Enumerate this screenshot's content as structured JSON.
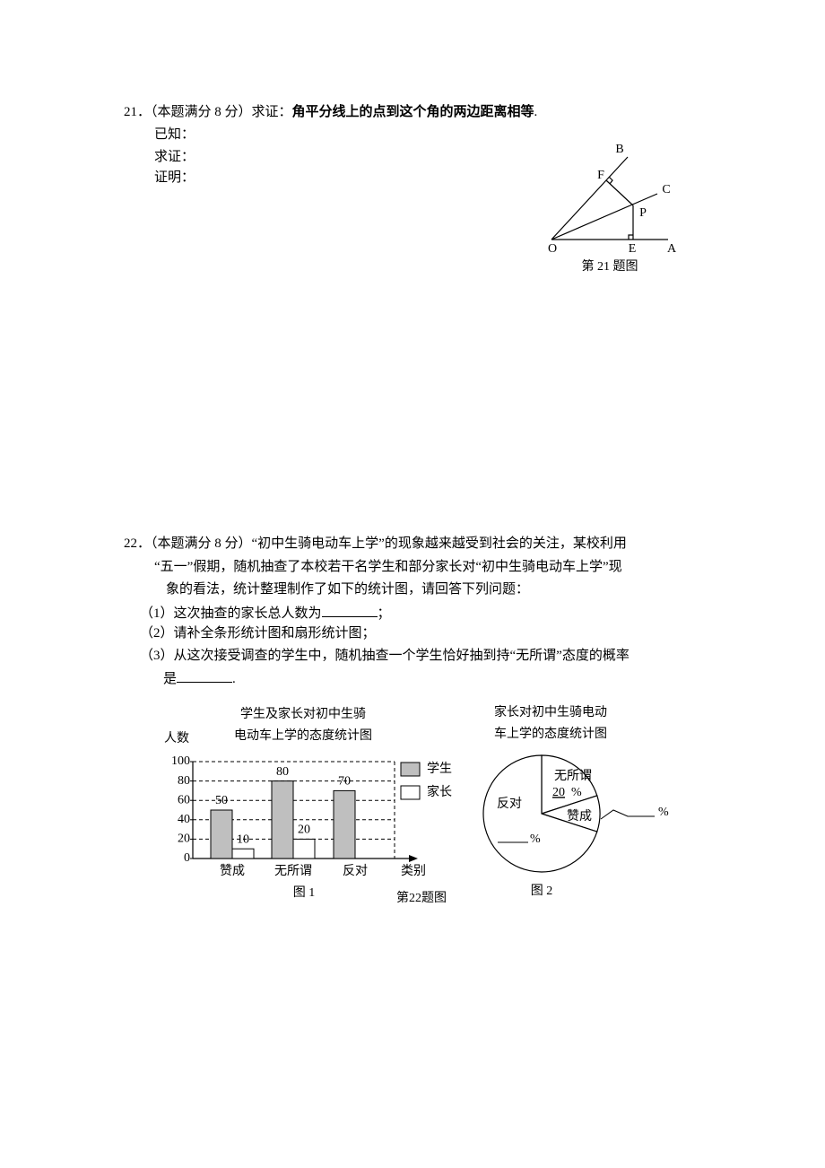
{
  "q21": {
    "number": "21．",
    "intro": "（本题满分 8 分）求证：",
    "statement": "角平分线上的点到这个角的两边距离相等",
    "period": ".",
    "lines": [
      "已知：",
      "求证：",
      "证明："
    ],
    "figure": {
      "points": [
        "B",
        "F",
        "C",
        "P",
        "O",
        "E",
        "A"
      ],
      "caption": "第 21 题图"
    }
  },
  "q22": {
    "number": "22．",
    "lines": [
      "（本题满分 8 分）“初中生骑电动车上学”的现象越来越受到社会的关注，某校利用",
      "“五一”假期，随机抽查了本校若干名学生和部分家长对“初中生骑电动车上学”现",
      "象的看法，统计整理制作了如下的统计图，请回答下列问题："
    ],
    "sub1": [
      "（1）这次抽查的家长总人数为",
      "；"
    ],
    "sub2": "（2）请补全条形统计图和扇形统计图；",
    "sub3": [
      "（3）从这次接受调查的学生中，随机抽查一个学生恰好抽到持“无所谓”态度的概率",
      "是",
      "."
    ],
    "caption": "第22题图"
  },
  "chart_data": [
    {
      "type": "bar",
      "title": [
        "学生及家长对初中生骑",
        "电动车上学的态度统计图"
      ],
      "ylabel": "人数",
      "xlabel": "类别",
      "categories": [
        "赞成",
        "无所谓",
        "反对"
      ],
      "series": [
        {
          "name": "学生",
          "color": "#bfbfbf",
          "values": [
            50,
            80,
            70
          ]
        },
        {
          "name": "家长",
          "color": "#ffffff",
          "values": [
            10,
            20,
            null
          ]
        }
      ],
      "ylim": [
        0,
        100
      ],
      "yticks": [
        0,
        20,
        40,
        60,
        80,
        100
      ],
      "grid": true,
      "caption": "图 1"
    },
    {
      "type": "pie",
      "title": [
        "家长对初中生骑电动",
        "车上学的态度统计图"
      ],
      "categories": [
        "无所谓",
        "赞成",
        "反对"
      ],
      "values": [
        20,
        10,
        70
      ],
      "percent_signs": [
        "%",
        "%",
        "%"
      ],
      "caption": "图 2"
    }
  ]
}
